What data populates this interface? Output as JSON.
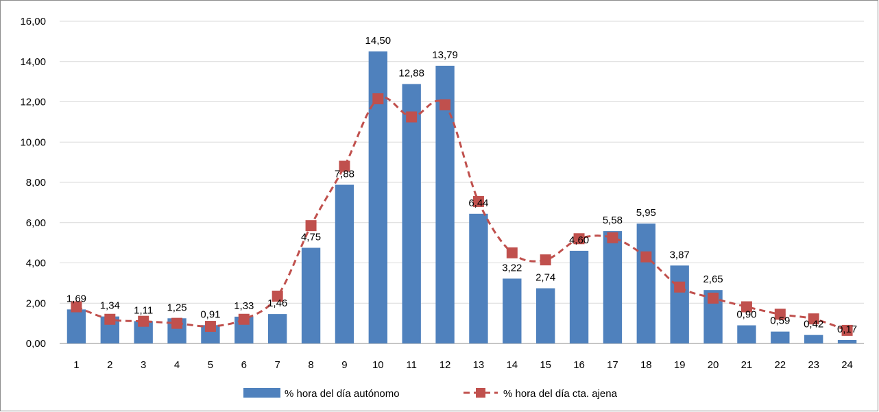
{
  "chart_data": {
    "type": "bar",
    "categories": [
      "1",
      "2",
      "3",
      "4",
      "5",
      "6",
      "7",
      "8",
      "9",
      "10",
      "11",
      "12",
      "13",
      "14",
      "15",
      "16",
      "17",
      "18",
      "19",
      "20",
      "21",
      "22",
      "23",
      "24"
    ],
    "series": [
      {
        "name": "% hora del día autónomo",
        "type": "bar",
        "color": "#4f81bd",
        "values": [
          1.69,
          1.34,
          1.11,
          1.25,
          0.91,
          1.33,
          1.46,
          4.75,
          7.88,
          14.5,
          12.88,
          13.79,
          6.44,
          3.22,
          2.74,
          4.6,
          5.58,
          5.95,
          3.87,
          2.65,
          0.9,
          0.59,
          0.42,
          0.17
        ],
        "labels": [
          "1,69",
          "1,34",
          "1,11",
          "1,25",
          "0,91",
          "1,33",
          "1,46",
          "4,75",
          "7,88",
          "14,50",
          "12,88",
          "13,79",
          "6,44",
          "3,22",
          "2,74",
          "4,60",
          "5,58",
          "5,95",
          "3,87",
          "2,65",
          "0,90",
          "0,59",
          "0,42",
          "0,17"
        ]
      },
      {
        "name": "% hora del día cta. ajena",
        "type": "line",
        "style": "dashed",
        "marker": "square",
        "color": "#c0504d",
        "values": [
          1.82,
          1.2,
          1.1,
          1.0,
          0.85,
          1.2,
          2.35,
          5.85,
          8.8,
          12.15,
          11.25,
          11.85,
          7.05,
          4.5,
          4.15,
          5.2,
          5.25,
          4.3,
          2.8,
          2.25,
          1.82,
          1.45,
          1.22,
          0.65
        ]
      }
    ],
    "ylim": [
      0,
      16
    ],
    "yticks": [
      0,
      2,
      4,
      6,
      8,
      10,
      12,
      14,
      16
    ],
    "ytick_labels": [
      "0,00",
      "2,00",
      "4,00",
      "6,00",
      "8,00",
      "10,00",
      "12,00",
      "14,00",
      "16,00"
    ],
    "grid": true,
    "legend_position": "bottom",
    "title": "",
    "xlabel": "",
    "ylabel": ""
  }
}
